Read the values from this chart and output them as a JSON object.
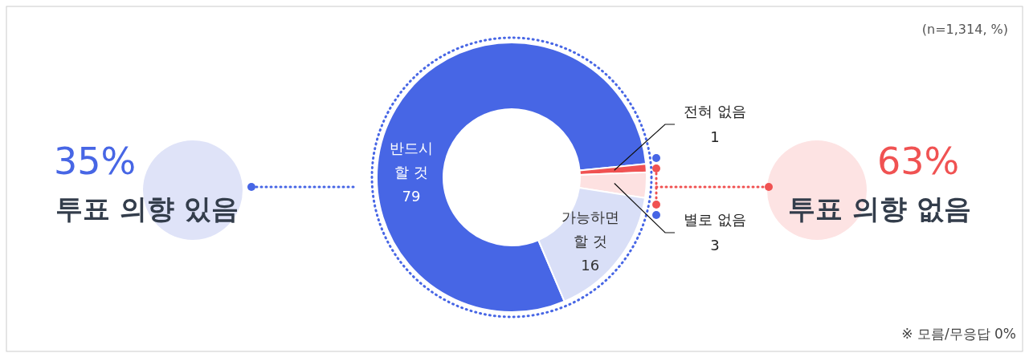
{
  "chart_data": {
    "type": "donut",
    "categories": [
      "반드시 할 것",
      "전혀 없음",
      "별로 없음",
      "가능하면 할 것"
    ],
    "values": [
      79,
      1,
      3,
      16
    ],
    "colors": [
      "#4766e5",
      "#f05252",
      "#fde1e1",
      "#d9dff7"
    ],
    "data_labels": true,
    "annotations": [
      "35%",
      "투표 의향 있음",
      "63%",
      "투표 의향 없음",
      "(n=1,314, %)",
      "※ 모름/무응답 0%"
    ]
  }
}
